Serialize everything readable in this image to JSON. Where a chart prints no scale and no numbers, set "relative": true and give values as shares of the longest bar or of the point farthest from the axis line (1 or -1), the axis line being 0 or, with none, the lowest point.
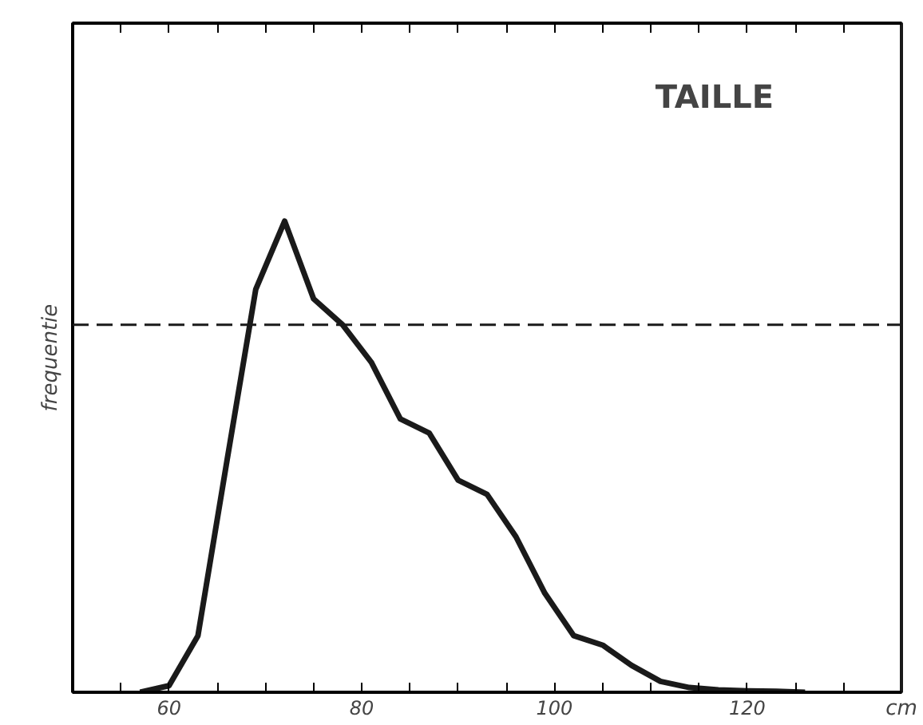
{
  "chart_data": {
    "type": "line",
    "title": "TAILLE",
    "xlabel": "cm",
    "ylabel": "frequentie",
    "relative": true,
    "x": [
      57,
      60,
      63,
      66,
      69,
      72,
      75,
      78,
      81,
      84,
      87,
      90,
      93,
      96,
      99,
      102,
      105,
      108,
      111,
      114,
      117,
      120,
      123,
      126
    ],
    "series": [
      {
        "color": "#1a1a1a",
        "values": [
          0,
          0.014,
          0.12,
          0.49,
          0.855,
          1,
          0.835,
          0.78,
          0.7,
          0.58,
          0.55,
          0.45,
          0.42,
          0.33,
          0.21,
          0.12,
          0.1,
          0.057,
          0.023,
          0.01,
          0.005,
          0.003,
          0.002,
          0
        ]
      }
    ],
    "xlim": [
      50,
      136
    ],
    "xticks": [
      {
        "value": 55,
        "label": null
      },
      60,
      {
        "value": 65,
        "label": null
      },
      {
        "value": 70,
        "label": null
      },
      {
        "value": 75,
        "label": null
      },
      80,
      {
        "value": 85,
        "label": null
      },
      {
        "value": 90,
        "label": null
      },
      {
        "value": 95,
        "label": null
      },
      100,
      {
        "value": 105,
        "label": null
      },
      {
        "value": 110,
        "label": null
      },
      {
        "value": 115,
        "label": null
      },
      120,
      {
        "value": 125,
        "label": null
      },
      {
        "value": 130,
        "label": null
      }
    ],
    "ref_lines": [
      {
        "axis": "y",
        "value": 0.78,
        "line_style": "dashed",
        "color": "#1a1a1a"
      }
    ],
    "grid": false,
    "marker": "none",
    "line_style": "solid"
  }
}
